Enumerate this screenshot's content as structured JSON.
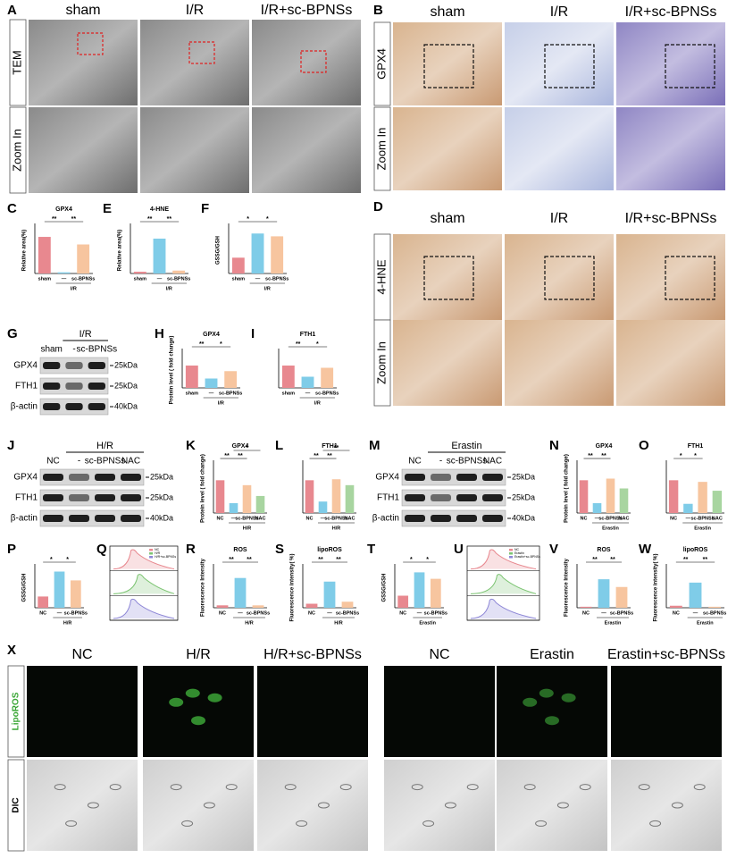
{
  "image_panels": [
    {
      "letter": "A",
      "columns": [
        "sham",
        "I/R",
        "I/R+sc-BPNSs"
      ],
      "rows": [
        "TEM",
        "Zoom In"
      ]
    },
    {
      "letter": "B",
      "columns": [
        "sham",
        "I/R",
        "I/R+sc-BPNSs"
      ],
      "rows": [
        "GPX4",
        "Zoom In"
      ]
    },
    {
      "letter": "D",
      "columns": [
        "sham",
        "I/R",
        "I/R+sc-BPNSs"
      ],
      "rows": [
        "4-HNE",
        "Zoom In"
      ]
    },
    {
      "letter": "X",
      "columns": [
        "NC",
        "H/R",
        "H/R+sc-BPNSs",
        "NC",
        "Erastin",
        "Erastin+sc-BPNSs"
      ],
      "rows": [
        "LipoROS",
        "DIC"
      ]
    }
  ],
  "blots": [
    {
      "letter": "G",
      "group": "I/R",
      "lanes": [
        "sham",
        "-",
        "sc-BPNSs"
      ],
      "rows": [
        "GPX4",
        "FTH1",
        "β-actin"
      ],
      "sizes": [
        "25kDa",
        "25kDa",
        "40kDa"
      ]
    },
    {
      "letter": "J",
      "group": "H/R",
      "lanes": [
        "NC",
        "-",
        "sc-BPNSs",
        "NAC"
      ],
      "rows": [
        "GPX4",
        "FTH1",
        "β-actin"
      ],
      "sizes": [
        "25kDa",
        "25kDa",
        "40kDa"
      ]
    },
    {
      "letter": "M",
      "group": "Erastin",
      "lanes": [
        "NC",
        "-",
        "sc-BPNSs",
        "NAC"
      ],
      "rows": [
        "GPX4",
        "FTH1",
        "β-actin"
      ],
      "sizes": [
        "25kDa",
        "25kDa",
        "40kDa"
      ]
    }
  ],
  "flow_panels": [
    {
      "letter": "Q",
      "legend": [
        "NC",
        "H/R",
        "H/R+sc-BPNSs"
      ]
    },
    {
      "letter": "U",
      "legend": [
        "NC",
        "Erastin",
        "Erastin+sc-BPNSs"
      ]
    }
  ],
  "chart_data": [
    {
      "type": "bar",
      "letter": "C",
      "title": "GPX4",
      "ylabel": "Relative area(%)",
      "categories": [
        "sham",
        "—",
        "sc-BPNSs"
      ],
      "group": "I/R",
      "values": [
        63,
        2,
        50
      ],
      "colors": [
        "#e8888f",
        "#7fcce8",
        "#f7c59f"
      ],
      "ylim": [
        0,
        80
      ],
      "significance": [
        "**",
        "**"
      ]
    },
    {
      "type": "bar",
      "letter": "E",
      "title": "4-HNE",
      "ylabel": "Relative area(%)",
      "categories": [
        "sham",
        "—",
        "sc-BPNSs"
      ],
      "group": "I/R",
      "values": [
        3,
        60,
        5
      ],
      "colors": [
        "#e8888f",
        "#7fcce8",
        "#f7c59f"
      ],
      "ylim": [
        0,
        80
      ],
      "significance": [
        "**",
        "**"
      ]
    },
    {
      "type": "bar",
      "letter": "F",
      "ylabel": "GSSG/GSH",
      "categories": [
        "sham",
        "—",
        "sc-BPNSs"
      ],
      "group": "I/R",
      "values": [
        0.17,
        0.43,
        0.4
      ],
      "colors": [
        "#e8888f",
        "#7fcce8",
        "#f7c59f"
      ],
      "ylim": [
        0,
        0.5
      ],
      "significance": [
        "*",
        "*"
      ]
    },
    {
      "type": "bar",
      "letter": "H",
      "title": "GPX4",
      "ylabel": "Protein level ( fold change)",
      "categories": [
        "sham",
        "—",
        "sc-BPNSs"
      ],
      "group": "I/R",
      "values": [
        1.0,
        0.42,
        0.75
      ],
      "colors": [
        "#e8888f",
        "#7fcce8",
        "#f7c59f"
      ],
      "ylim": [
        0,
        1.6
      ],
      "significance": [
        "**",
        "*"
      ]
    },
    {
      "type": "bar",
      "letter": "I",
      "title": "FTH1",
      "categories": [
        "sham",
        "—",
        "sc-BPNSs"
      ],
      "group": "I/R",
      "values": [
        1.0,
        0.5,
        0.9
      ],
      "colors": [
        "#e8888f",
        "#7fcce8",
        "#f7c59f"
      ],
      "ylim": [
        0,
        1.6
      ],
      "significance": [
        "**",
        "*"
      ]
    },
    {
      "type": "bar",
      "letter": "K",
      "title": "GPX4",
      "ylabel": "Protein level ( fold change)",
      "categories": [
        "NC",
        "—",
        "sc-BPNSs",
        "NAC"
      ],
      "group": "H/R",
      "values": [
        1.0,
        0.3,
        0.85,
        0.52
      ],
      "colors": [
        "#e8888f",
        "#7fcce8",
        "#f7c59f",
        "#a8d5a0"
      ],
      "ylim": [
        0,
        1.5
      ],
      "significance": [
        "**",
        "**",
        "*"
      ]
    },
    {
      "type": "bar",
      "letter": "L",
      "title": "FTH1",
      "categories": [
        "NC",
        "—",
        "sc-BPNSs",
        "NAC"
      ],
      "group": "H/R",
      "values": [
        1.0,
        0.35,
        1.03,
        0.85
      ],
      "colors": [
        "#e8888f",
        "#7fcce8",
        "#f7c59f",
        "#a8d5a0"
      ],
      "ylim": [
        0,
        1.5
      ],
      "significance": [
        "**",
        "**",
        "**"
      ]
    },
    {
      "type": "bar",
      "letter": "N",
      "title": "GPX4",
      "ylabel": "Protein level ( fold change)",
      "categories": [
        "NC",
        "—",
        "sc-BPNSs",
        "NAC"
      ],
      "group": "Erastin",
      "values": [
        1.0,
        0.3,
        1.05,
        0.75
      ],
      "colors": [
        "#e8888f",
        "#7fcce8",
        "#f7c59f",
        "#a8d5a0"
      ],
      "ylim": [
        0,
        1.5
      ],
      "significance": [
        "**",
        "**"
      ]
    },
    {
      "type": "bar",
      "letter": "O",
      "title": "FTH1",
      "categories": [
        "NC",
        "—",
        "sc-BPNSs",
        "NAC"
      ],
      "group": "Erastin",
      "values": [
        1.0,
        0.28,
        0.95,
        0.68
      ],
      "colors": [
        "#e8888f",
        "#7fcce8",
        "#f7c59f",
        "#a8d5a0"
      ],
      "ylim": [
        0,
        1.5
      ],
      "significance": [
        "*",
        "*"
      ]
    },
    {
      "type": "bar",
      "letter": "P",
      "ylabel": "GSSG/GSH",
      "categories": [
        "NC",
        "—",
        "sc-BPNSs"
      ],
      "group": "H/R",
      "values": [
        0.14,
        0.45,
        0.34
      ],
      "colors": [
        "#e8888f",
        "#7fcce8",
        "#f7c59f"
      ],
      "ylim": [
        0,
        0.5
      ],
      "significance": [
        "*",
        "*"
      ]
    },
    {
      "type": "bar",
      "letter": "R",
      "title": "ROS",
      "ylabel": "Fluorescence Intensity",
      "categories": [
        "NC",
        "—",
        "sc-BPNSs"
      ],
      "group": "H/R",
      "values": [
        300,
        3700,
        300
      ],
      "colors": [
        "#e8888f",
        "#7fcce8",
        "#f7c59f"
      ],
      "ylim": [
        0,
        5000
      ],
      "significance": [
        "**",
        "**"
      ]
    },
    {
      "type": "bar",
      "letter": "S",
      "title": "lipoROS",
      "ylabel": "Fluorescence intensity( %)",
      "categories": [
        "NC",
        "—",
        "sc-BPNSs"
      ],
      "group": "H/R",
      "values": [
        1,
        6.5,
        1.5
      ],
      "colors": [
        "#e8888f",
        "#7fcce8",
        "#f7c59f"
      ],
      "ylim": [
        0,
        10
      ],
      "significance": [
        "**",
        "**"
      ]
    },
    {
      "type": "bar",
      "letter": "T",
      "ylabel": "GSSG/GSH",
      "categories": [
        "NC",
        "—",
        "sc-BPNSs"
      ],
      "group": "Erastin",
      "values": [
        0.15,
        0.44,
        0.36
      ],
      "colors": [
        "#e8888f",
        "#7fcce8",
        "#f7c59f"
      ],
      "ylim": [
        0,
        0.5
      ],
      "significance": [
        "*",
        "*"
      ]
    },
    {
      "type": "bar",
      "letter": "V",
      "title": "ROS",
      "ylabel": "Fluorescence Intensity",
      "categories": [
        "NC",
        "—",
        "sc-BPNSs"
      ],
      "group": "Erastin",
      "values": [
        300,
        8500,
        6200
      ],
      "colors": [
        "#e8888f",
        "#7fcce8",
        "#f7c59f"
      ],
      "ylim": [
        0,
        12000
      ],
      "significance": [
        "**",
        "**"
      ]
    },
    {
      "type": "bar",
      "letter": "W",
      "title": "lipoROS",
      "ylabel": "Fluorescence intensity( %)",
      "categories": [
        "NC",
        "—",
        "sc-BPNSs"
      ],
      "group": "Erastin",
      "values": [
        1,
        12.5,
        0.5
      ],
      "colors": [
        "#e8888f",
        "#7fcce8",
        "#f7c59f"
      ],
      "ylim": [
        0,
        20
      ],
      "significance": [
        "**",
        "**"
      ]
    }
  ]
}
